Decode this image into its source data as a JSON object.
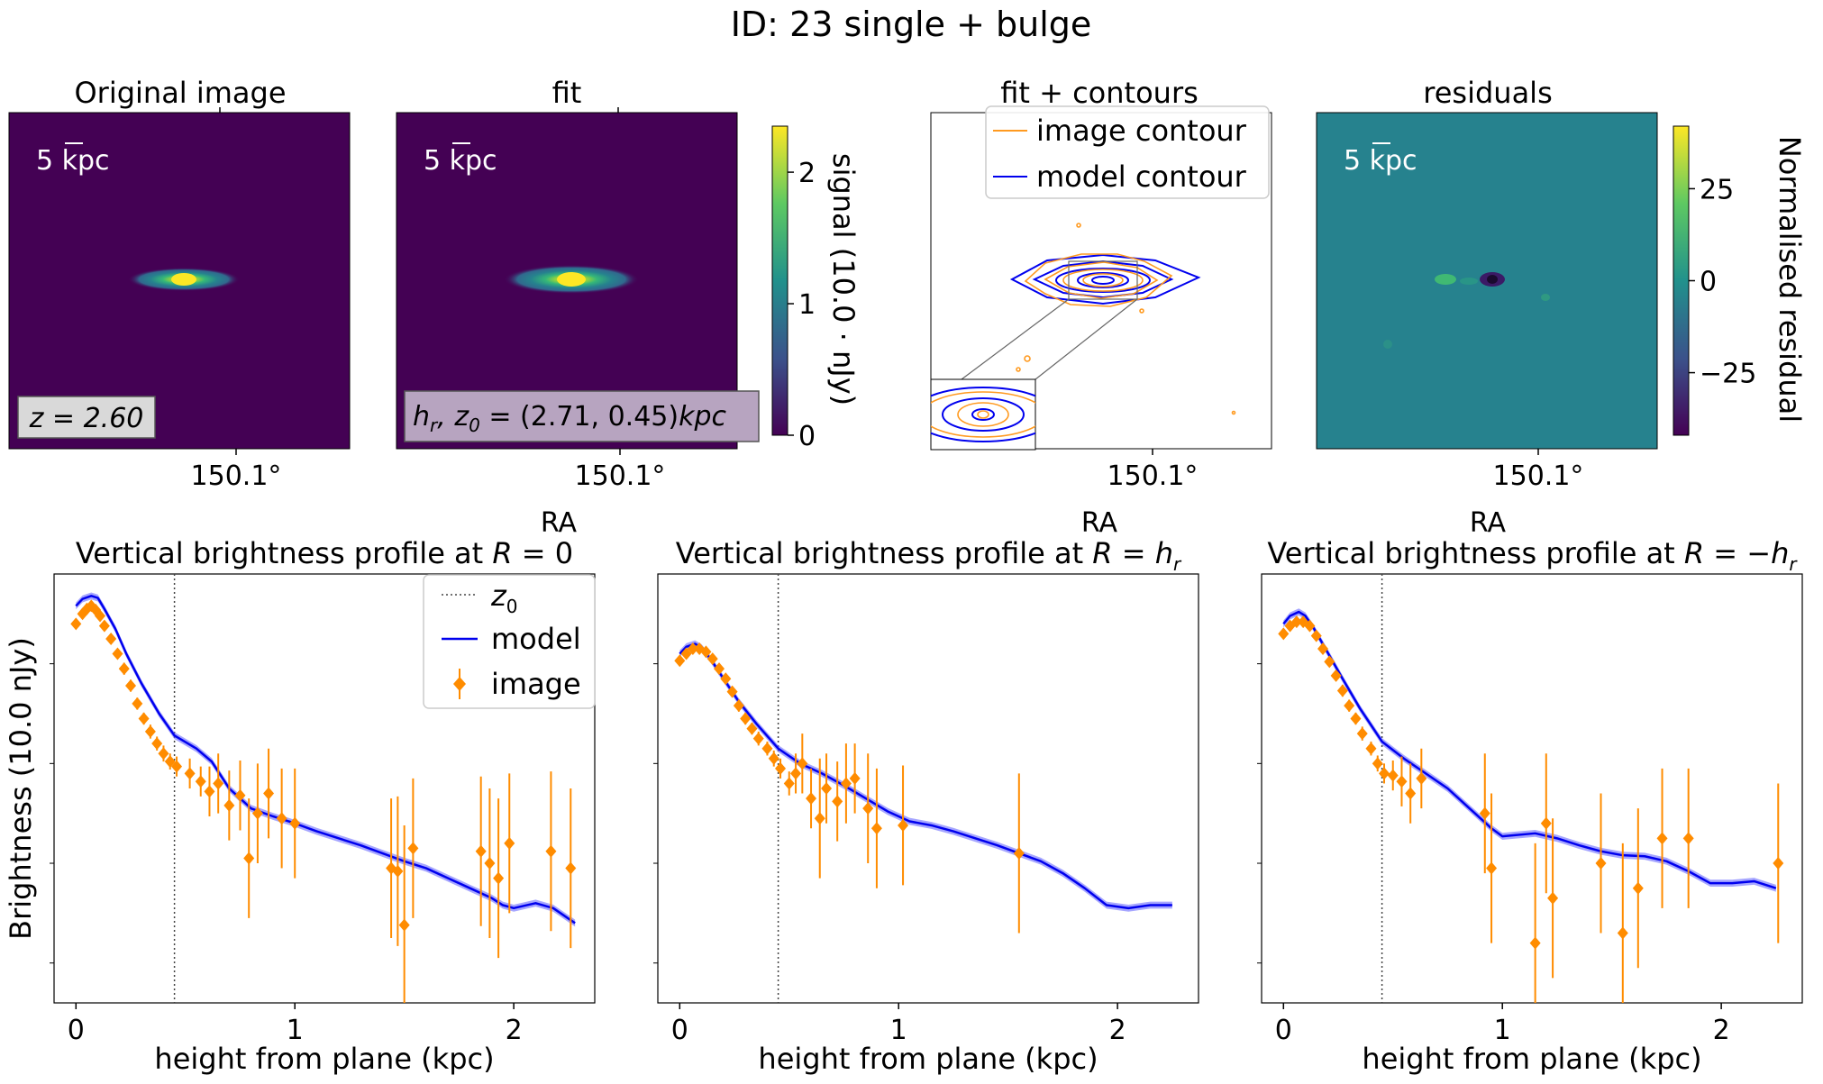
{
  "title": "ID: 23  single + bulge",
  "colors": {
    "background": "#440154",
    "residual_bg": "#26828e",
    "model": "#0000ee",
    "model_band": "#6b6bff",
    "image": "#ff8c00",
    "label_box": "#d9d9d9"
  },
  "panels": {
    "original": {
      "title": "Original image",
      "scalebar": "5 kpc",
      "redshift_label": "z = 2.60",
      "ra_tick": "150.1°"
    },
    "fit": {
      "title": "fit",
      "scalebar": "5 kpc",
      "params_label": "h_r, z_0 = (2.71, 0.45)kpc",
      "ra_tick": "150.1°",
      "colorbar": {
        "label": "signal (10.0 · nJy)",
        "ticks": [
          "0",
          "1",
          "2"
        ],
        "range": [
          0,
          2.35
        ]
      }
    },
    "contours": {
      "title": "fit + contours",
      "legend": [
        "image contour",
        "model contour"
      ],
      "ra_tick": "150.1°",
      "ra_label": "RA"
    },
    "residuals": {
      "title": "residuals",
      "scalebar": "5 kpc",
      "ra_tick": "150.1°",
      "ra_label": "RA",
      "colorbar": {
        "label": "Normalised residual",
        "ticks": [
          "25",
          "0",
          "−25"
        ],
        "range": [
          -42,
          42
        ]
      }
    }
  },
  "chart_data": [
    {
      "type": "line",
      "title": "Vertical brightness profile at R = 0",
      "ra_label": "RA",
      "xlabel": "height from plane (kpc)",
      "ylabel": "Brightness (10.0 nJy)",
      "x_ticks": [
        "0",
        "1",
        "2"
      ],
      "xlim": [
        -0.1,
        2.37
      ],
      "y_scale": "log",
      "ylim_log10": [
        -4.4,
        -0.1
      ],
      "z0_line": 0.45,
      "legend": [
        "z_0",
        "model",
        "image"
      ],
      "model": {
        "x": [
          0,
          0.03,
          0.07,
          0.1,
          0.13,
          0.18,
          0.23,
          0.3,
          0.38,
          0.45,
          0.55,
          0.62,
          0.7,
          0.8,
          0.9,
          1.0,
          1.1,
          1.2,
          1.3,
          1.4,
          1.5,
          1.6,
          1.7,
          1.8,
          1.9,
          1.95,
          2.0,
          2.1,
          2.18,
          2.28
        ],
        "log10": [
          -0.42,
          -0.35,
          -0.32,
          -0.34,
          -0.45,
          -0.65,
          -0.9,
          -1.2,
          -1.5,
          -1.72,
          -1.85,
          -1.98,
          -2.25,
          -2.45,
          -2.53,
          -2.6,
          -2.68,
          -2.75,
          -2.82,
          -2.9,
          -2.98,
          -3.05,
          -3.15,
          -3.25,
          -3.35,
          -3.42,
          -3.45,
          -3.4,
          -3.45,
          -3.6
        ]
      },
      "image": {
        "x": [
          0,
          0.03,
          0.05,
          0.07,
          0.09,
          0.11,
          0.13,
          0.16,
          0.19,
          0.22,
          0.25,
          0.28,
          0.31,
          0.34,
          0.37,
          0.4,
          0.43,
          0.46,
          0.52,
          0.57,
          0.61,
          0.65,
          0.7,
          0.75,
          0.79,
          0.83,
          0.88,
          0.94,
          1.0,
          1.44,
          1.47,
          1.5,
          1.54,
          1.85,
          1.89,
          1.93,
          1.98,
          2.17,
          2.26
        ],
        "log10": [
          -0.6,
          -0.5,
          -0.45,
          -0.42,
          -0.46,
          -0.52,
          -0.62,
          -0.75,
          -0.9,
          -1.05,
          -1.22,
          -1.4,
          -1.55,
          -1.68,
          -1.8,
          -1.9,
          -1.98,
          -2.03,
          -2.1,
          -2.18,
          -2.28,
          -2.2,
          -2.42,
          -2.32,
          -2.95,
          -2.5,
          -2.3,
          -2.55,
          -2.6,
          -3.05,
          -3.08,
          -3.62,
          -2.85,
          -2.88,
          -3.0,
          -3.15,
          -2.8,
          -2.88,
          -3.05
        ],
        "err_log10": [
          0.05,
          0.05,
          0.05,
          0.05,
          0.05,
          0.05,
          0.05,
          0.05,
          0.05,
          0.06,
          0.06,
          0.06,
          0.06,
          0.07,
          0.07,
          0.08,
          0.08,
          0.1,
          0.15,
          0.15,
          0.25,
          0.3,
          0.35,
          0.35,
          0.6,
          0.5,
          0.45,
          0.5,
          0.55,
          0.7,
          0.75,
          1.0,
          0.7,
          0.75,
          0.75,
          0.8,
          0.7,
          0.8,
          0.8
        ]
      }
    },
    {
      "type": "line",
      "title": "Vertical brightness profile at R = h_r",
      "ra_label": "RA",
      "xlabel": "height from plane (kpc)",
      "x_ticks": [
        "0",
        "1",
        "2"
      ],
      "xlim": [
        -0.1,
        2.37
      ],
      "y_scale": "log",
      "ylim_log10": [
        -4.4,
        -0.1
      ],
      "z0_line": 0.45,
      "model": {
        "x": [
          0,
          0.03,
          0.07,
          0.1,
          0.14,
          0.2,
          0.27,
          0.35,
          0.45,
          0.55,
          0.65,
          0.75,
          0.85,
          0.95,
          1.05,
          1.15,
          1.25,
          1.35,
          1.45,
          1.55,
          1.65,
          1.75,
          1.85,
          1.95,
          2.05,
          2.15,
          2.25
        ],
        "log10": [
          -0.9,
          -0.83,
          -0.8,
          -0.84,
          -0.95,
          -1.15,
          -1.38,
          -1.6,
          -1.85,
          -2.0,
          -2.1,
          -2.22,
          -2.35,
          -2.48,
          -2.58,
          -2.62,
          -2.68,
          -2.75,
          -2.82,
          -2.9,
          -2.98,
          -3.1,
          -3.25,
          -3.42,
          -3.45,
          -3.42,
          -3.42
        ]
      },
      "image": {
        "x": [
          0,
          0.03,
          0.06,
          0.09,
          0.12,
          0.15,
          0.18,
          0.21,
          0.24,
          0.27,
          0.3,
          0.33,
          0.36,
          0.4,
          0.43,
          0.46,
          0.5,
          0.53,
          0.56,
          0.6,
          0.64,
          0.67,
          0.72,
          0.76,
          0.8,
          0.86,
          0.9,
          1.02,
          1.55
        ],
        "log10": [
          -0.97,
          -0.9,
          -0.85,
          -0.85,
          -0.88,
          -0.95,
          -1.05,
          -1.15,
          -1.28,
          -1.42,
          -1.55,
          -1.65,
          -1.75,
          -1.85,
          -1.95,
          -2.05,
          -2.2,
          -2.1,
          -2.0,
          -2.35,
          -2.55,
          -2.25,
          -2.38,
          -2.2,
          -2.15,
          -2.45,
          -2.65,
          -2.62,
          -2.9
        ],
        "err_log10": [
          0.05,
          0.05,
          0.05,
          0.05,
          0.05,
          0.05,
          0.05,
          0.05,
          0.05,
          0.06,
          0.06,
          0.06,
          0.07,
          0.07,
          0.08,
          0.1,
          0.12,
          0.2,
          0.3,
          0.3,
          0.6,
          0.35,
          0.4,
          0.4,
          0.35,
          0.55,
          0.6,
          0.6,
          0.8
        ]
      }
    },
    {
      "type": "line",
      "title": "Vertical brightness profile at R = −h_r",
      "ra_label": "RA",
      "xlabel": "height from plane (kpc)",
      "x_ticks": [
        "0",
        "1",
        "2"
      ],
      "xlim": [
        -0.1,
        2.37
      ],
      "y_scale": "log",
      "ylim_log10": [
        -4.4,
        -0.1
      ],
      "z0_line": 0.45,
      "model": {
        "x": [
          0,
          0.03,
          0.07,
          0.1,
          0.14,
          0.2,
          0.27,
          0.35,
          0.45,
          0.55,
          0.65,
          0.75,
          0.85,
          0.95,
          1.0,
          1.05,
          1.15,
          1.25,
          1.35,
          1.45,
          1.55,
          1.65,
          1.75,
          1.85,
          1.95,
          2.05,
          2.15,
          2.25
        ],
        "log10": [
          -0.6,
          -0.52,
          -0.48,
          -0.52,
          -0.65,
          -0.88,
          -1.15,
          -1.45,
          -1.78,
          -1.95,
          -2.1,
          -2.25,
          -2.45,
          -2.65,
          -2.73,
          -2.72,
          -2.7,
          -2.75,
          -2.82,
          -2.88,
          -2.92,
          -2.93,
          -2.98,
          -3.08,
          -3.2,
          -3.2,
          -3.18,
          -3.25
        ]
      },
      "image": {
        "x": [
          0,
          0.03,
          0.06,
          0.09,
          0.12,
          0.15,
          0.18,
          0.21,
          0.24,
          0.27,
          0.3,
          0.33,
          0.36,
          0.4,
          0.43,
          0.46,
          0.5,
          0.54,
          0.58,
          0.63,
          0.92,
          0.95,
          1.15,
          1.2,
          1.23,
          1.45,
          1.55,
          1.62,
          1.73,
          1.85,
          2.26
        ],
        "log10": [
          -0.7,
          -0.62,
          -0.58,
          -0.58,
          -0.62,
          -0.72,
          -0.85,
          -0.98,
          -1.12,
          -1.27,
          -1.42,
          -1.55,
          -1.7,
          -1.85,
          -2.0,
          -2.1,
          -2.12,
          -2.18,
          -2.3,
          -2.15,
          -2.5,
          -3.05,
          -3.8,
          -2.6,
          -3.35,
          -3.0,
          -3.7,
          -3.25,
          -2.75,
          -2.75,
          -3.0
        ],
        "err_log10": [
          0.05,
          0.05,
          0.05,
          0.05,
          0.05,
          0.05,
          0.05,
          0.05,
          0.05,
          0.06,
          0.06,
          0.06,
          0.07,
          0.07,
          0.08,
          0.1,
          0.15,
          0.25,
          0.3,
          0.3,
          0.6,
          0.75,
          1.0,
          0.7,
          0.8,
          0.7,
          0.9,
          0.8,
          0.7,
          0.7,
          0.8
        ]
      }
    }
  ]
}
